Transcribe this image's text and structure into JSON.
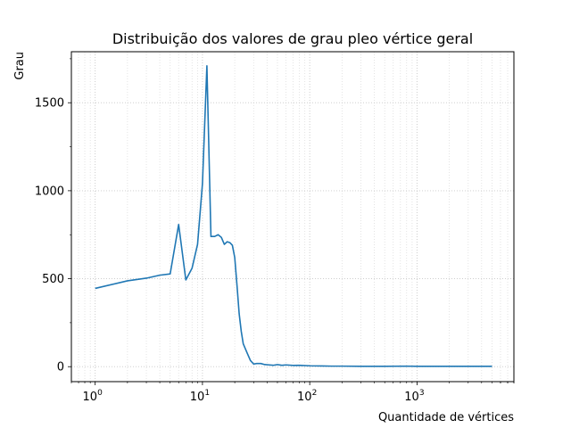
{
  "chart_data": {
    "type": "line",
    "title": "Distribuição dos valores de grau pleo vértice geral",
    "xlabel": "Quantidade de vértices",
    "ylabel": "Grau",
    "x_scale": "log",
    "xlim": [
      0.6,
      8000
    ],
    "ylim": [
      -85,
      1790
    ],
    "x_ticks": [
      {
        "value": 1,
        "base": "10",
        "exp": "0"
      },
      {
        "value": 10,
        "base": "10",
        "exp": "1"
      },
      {
        "value": 100,
        "base": "10",
        "exp": "2"
      },
      {
        "value": 1000,
        "base": "10",
        "exp": "3"
      }
    ],
    "y_ticks": [
      {
        "value": 0,
        "label": "0"
      },
      {
        "value": 500,
        "label": "500"
      },
      {
        "value": 1000,
        "label": "1000"
      },
      {
        "value": 1500,
        "label": "1500"
      }
    ],
    "grid": true,
    "grid_style": "dotted",
    "series": [
      {
        "color": "#1f77b4",
        "points": [
          [
            1,
            445
          ],
          [
            2,
            488
          ],
          [
            3,
            503
          ],
          [
            4,
            520
          ],
          [
            5,
            527
          ],
          [
            6,
            808
          ],
          [
            7,
            493
          ],
          [
            8,
            560
          ],
          [
            9,
            695
          ],
          [
            10,
            1040
          ],
          [
            11,
            1710
          ],
          [
            12,
            740
          ],
          [
            13,
            740
          ],
          [
            14,
            750
          ],
          [
            15,
            735
          ],
          [
            16,
            695
          ],
          [
            17,
            710
          ],
          [
            18,
            705
          ],
          [
            19,
            690
          ],
          [
            20,
            620
          ],
          [
            21,
            460
          ],
          [
            22,
            300
          ],
          [
            23,
            200
          ],
          [
            24,
            130
          ],
          [
            26,
            80
          ],
          [
            28,
            35
          ],
          [
            30,
            15
          ],
          [
            32,
            18
          ],
          [
            35,
            18
          ],
          [
            38,
            12
          ],
          [
            42,
            10
          ],
          [
            46,
            8
          ],
          [
            50,
            12
          ],
          [
            55,
            8
          ],
          [
            60,
            10
          ],
          [
            70,
            7
          ],
          [
            80,
            8
          ],
          [
            100,
            5
          ],
          [
            130,
            4
          ],
          [
            160,
            3
          ],
          [
            200,
            3
          ],
          [
            300,
            2
          ],
          [
            500,
            2
          ],
          [
            800,
            3
          ],
          [
            1000,
            2
          ],
          [
            2000,
            2
          ],
          [
            3000,
            2
          ],
          [
            5000,
            2
          ]
        ]
      }
    ]
  }
}
